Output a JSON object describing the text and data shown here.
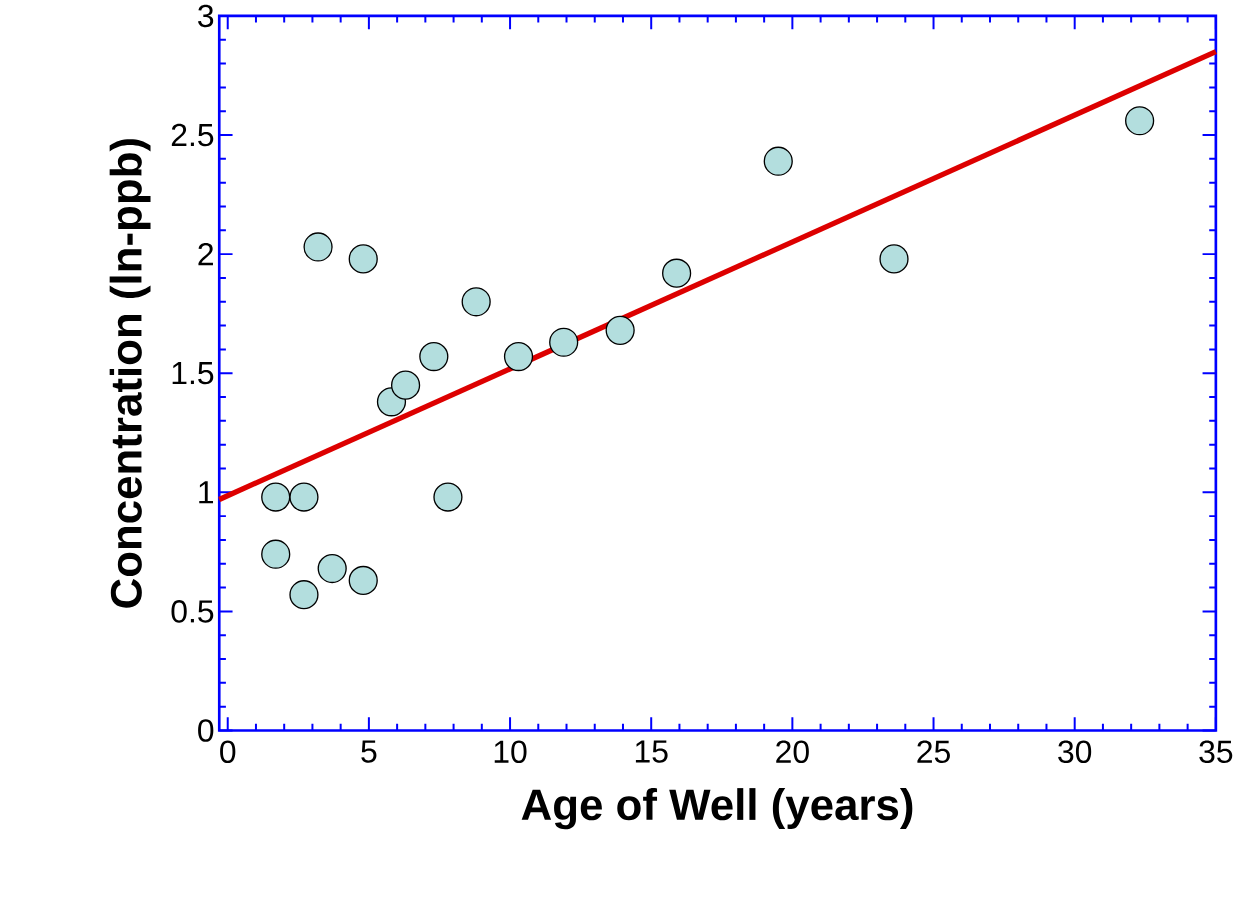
{
  "chart_data": {
    "type": "scatter",
    "xlabel": "Age of Well (years)",
    "ylabel": "Concentration (ln-ppb)",
    "x": [
      1.7,
      1.7,
      2.7,
      2.7,
      3.2,
      3.7,
      4.8,
      4.8,
      5.8,
      6.3,
      7.3,
      7.8,
      8.8,
      10.3,
      11.9,
      13.9,
      15.9,
      19.5,
      23.6,
      32.3
    ],
    "series": [
      {
        "color": "#b3dede",
        "marker": "circle",
        "values": [
          0.98,
          0.74,
          0.98,
          0.57,
          2.03,
          0.68,
          1.98,
          0.63,
          1.38,
          1.45,
          1.57,
          0.98,
          1.8,
          1.57,
          1.63,
          1.68,
          1.92,
          2.39,
          1.98,
          2.56
        ]
      },
      {
        "type": "line",
        "color": "#dd0000",
        "marker": "none",
        "x": [
          -0.3,
          35
        ],
        "values": [
          0.97,
          2.85
        ]
      }
    ],
    "xlim": [
      -0.3,
      35
    ],
    "ylim": [
      0,
      3
    ],
    "xticks": [
      0,
      5,
      10,
      15,
      20,
      25,
      30,
      35
    ],
    "yticks": [
      0,
      0.5,
      1,
      1.5,
      2,
      2.5,
      3
    ]
  }
}
